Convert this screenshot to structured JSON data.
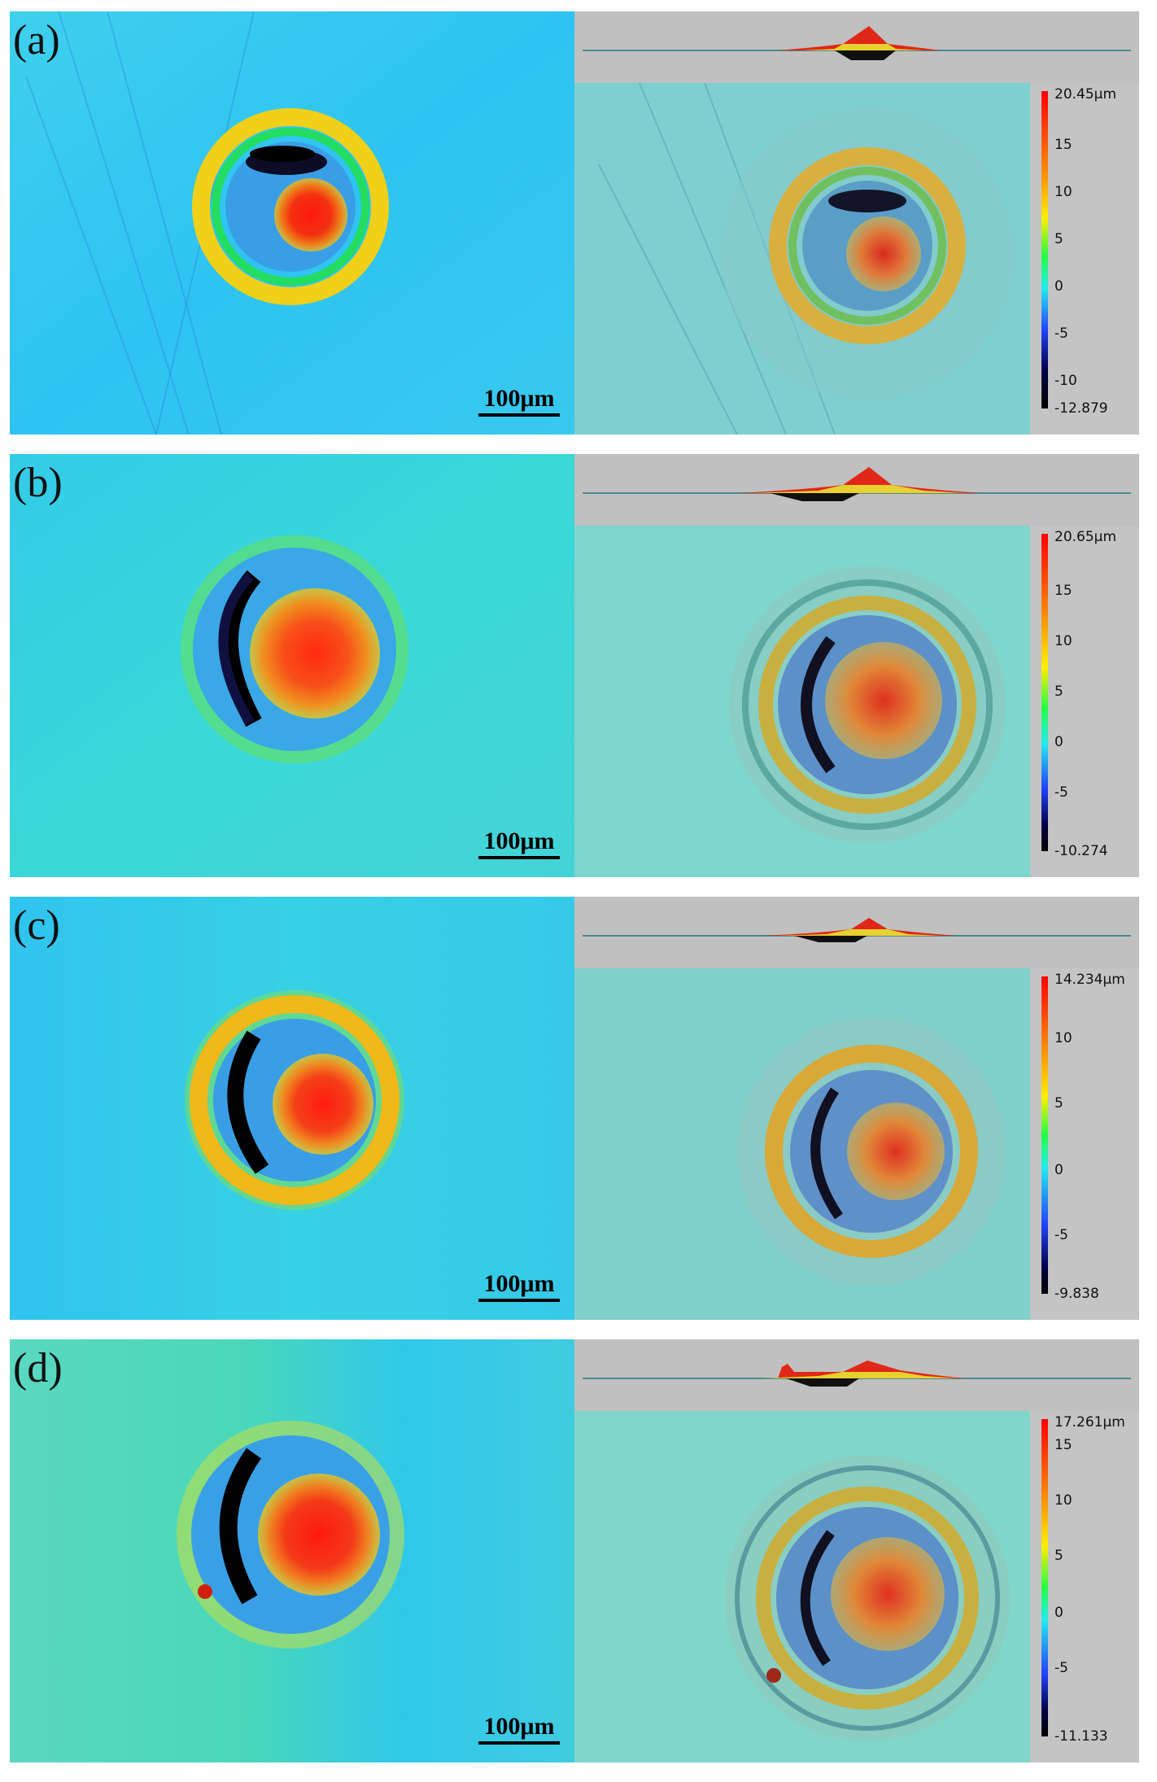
{
  "scale_bar_label": "100μm",
  "panels": [
    {
      "label": "(a)",
      "colorbar": {
        "max_label": "20.45μm",
        "min_label": "-12.879",
        "ticks": [
          "15",
          "10",
          "5",
          "0",
          "-5",
          "-10"
        ],
        "max": 20.45,
        "min": -12.879
      }
    },
    {
      "label": "(b)",
      "colorbar": {
        "max_label": "20.65μm",
        "min_label": "-10.274",
        "ticks": [
          "15",
          "10",
          "5",
          "0",
          "-5"
        ],
        "max": 20.65,
        "min": -10.274
      }
    },
    {
      "label": "(c)",
      "colorbar": {
        "max_label": "14.234μm",
        "min_label": "-9.838",
        "ticks": [
          "10",
          "5",
          "0",
          "-5"
        ],
        "max": 14.234,
        "min": -9.838
      }
    },
    {
      "label": "(d)",
      "colorbar": {
        "max_label": "17.261μm",
        "min_label": "-11.133",
        "ticks": [
          "15",
          "10",
          "5",
          "0",
          "-5"
        ],
        "max": 17.261,
        "min": -11.133
      }
    }
  ],
  "colors": {
    "background_cyan": "#33c8f0",
    "render_teal": "#6ccfc8",
    "peak_red": "#e01010",
    "ring_yellow": "#f0e020",
    "trough_black": "#101030"
  }
}
